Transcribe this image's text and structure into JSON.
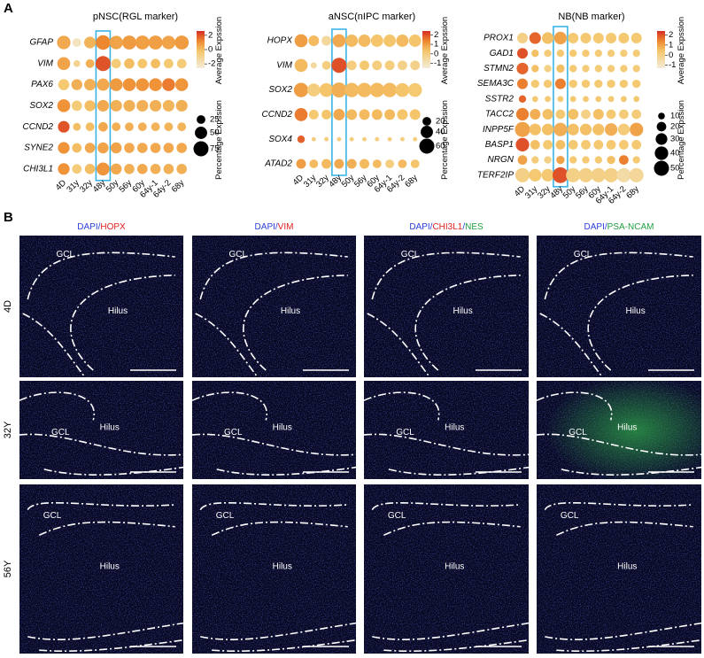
{
  "panel_labels": [
    "A",
    "B"
  ],
  "chart_data": [
    {
      "type": "dotplot",
      "title": "pNSC(RGL marker)",
      "categories": [
        "4D",
        "31y",
        "32y",
        "48y",
        "50y",
        "56y",
        "60y",
        "64y-1",
        "64y-2",
        "68y"
      ],
      "series": [
        {
          "name": "GFAP",
          "values": [
            0.5,
            -2,
            0.2,
            1.2,
            0.6,
            0.8,
            0.7,
            0.7,
            0.6,
            0.8
          ],
          "sizes": [
            60,
            25,
            45,
            70,
            60,
            65,
            65,
            65,
            60,
            65
          ]
        },
        {
          "name": "VIM",
          "values": [
            0.6,
            -1,
            0.3,
            2,
            -0.5,
            0,
            -0.2,
            0,
            -0.3,
            -0.5
          ],
          "sizes": [
            55,
            15,
            25,
            75,
            30,
            35,
            30,
            30,
            30,
            30
          ]
        },
        {
          "name": "PAX6",
          "values": [
            -0.3,
            0.3,
            0.3,
            0.5,
            0.8,
            1,
            0.9,
            1,
            1.4,
            0.9
          ],
          "sizes": [
            40,
            40,
            45,
            50,
            55,
            55,
            55,
            55,
            55,
            55
          ]
        },
        {
          "name": "SOX2",
          "values": [
            1,
            -0.5,
            0,
            0.5,
            0.3,
            0.3,
            0.3,
            0.3,
            0.2,
            0.3
          ],
          "sizes": [
            55,
            35,
            40,
            45,
            45,
            45,
            45,
            45,
            45,
            45
          ]
        },
        {
          "name": "CCND2",
          "values": [
            2,
            0,
            0,
            0.5,
            0.3,
            0.3,
            0.3,
            0.2,
            0.2,
            0.2
          ],
          "sizes": [
            45,
            20,
            25,
            30,
            25,
            25,
            25,
            25,
            25,
            25
          ]
        },
        {
          "name": "SYNE2",
          "values": [
            1,
            0,
            0.5,
            0.6,
            0.6,
            0.5,
            0.5,
            0.5,
            0.5,
            0.5
          ],
          "sizes": [
            45,
            30,
            35,
            40,
            40,
            35,
            35,
            35,
            35,
            35
          ]
        },
        {
          "name": "CHI3L1",
          "values": [
            1,
            -0.5,
            0,
            0.9,
            0.5,
            0.3,
            0.5,
            0.3,
            0.3,
            0.3
          ],
          "sizes": [
            45,
            30,
            35,
            55,
            40,
            35,
            35,
            35,
            35,
            35
          ]
        }
      ],
      "color_label": "Average Expssion",
      "clim": [
        -2.6,
        2.6
      ],
      "cticks": [
        2,
        0,
        -2
      ],
      "size_label": "Percentage Expssion",
      "size_ticks": [
        25,
        50,
        75
      ],
      "highlight_index": 3,
      "highlight_color": "#3cb4e6"
    },
    {
      "type": "dotplot",
      "title": "aNSC(nIPC marker)",
      "categories": [
        "4D",
        "31y",
        "32y",
        "48y",
        "50y",
        "56y",
        "60y",
        "64y-1",
        "64y-2",
        "68y"
      ],
      "series": [
        {
          "name": "HOPX",
          "values": [
            1,
            0.5,
            -0.5,
            0.8,
            0.5,
            0.5,
            0.3,
            0.3,
            0.5,
            0.3
          ],
          "sizes": [
            45,
            30,
            25,
            45,
            40,
            40,
            40,
            40,
            40,
            40
          ]
        },
        {
          "name": "VIM",
          "values": [
            0.5,
            -0.5,
            0,
            2,
            0,
            0.2,
            0,
            0,
            -0.2,
            -0.2
          ],
          "sizes": [
            45,
            10,
            20,
            60,
            25,
            25,
            25,
            25,
            25,
            25
          ]
        },
        {
          "name": "SOX2",
          "values": [
            1,
            0,
            0.3,
            0.7,
            0.5,
            0.5,
            0.5,
            0.5,
            0.3,
            0.2
          ],
          "sizes": [
            55,
            45,
            50,
            60,
            55,
            55,
            55,
            55,
            50,
            50
          ]
        },
        {
          "name": "CCND2",
          "values": [
            1.5,
            0.2,
            0.3,
            0.8,
            0.5,
            0.5,
            0.5,
            0.5,
            0.3,
            0.3
          ],
          "sizes": [
            45,
            25,
            25,
            35,
            30,
            30,
            30,
            30,
            30,
            30
          ]
        },
        {
          "name": "SOX4",
          "values": [
            1.8,
            0,
            0,
            0,
            0,
            0,
            0,
            0,
            0,
            0
          ],
          "sizes": [
            15,
            5,
            5,
            5,
            5,
            5,
            5,
            5,
            5,
            5
          ]
        },
        {
          "name": "ATAD2",
          "values": [
            1,
            0.5,
            0.5,
            0.8,
            0.7,
            0.5,
            0.5,
            0,
            0.5,
            0.3
          ],
          "sizes": [
            25,
            20,
            25,
            25,
            25,
            25,
            20,
            20,
            20,
            20
          ]
        }
      ],
      "color_label": "Average Expssion",
      "clim": [
        -1.5,
        2.4
      ],
      "cticks": [
        2,
        1,
        0,
        -1
      ],
      "size_label": "Percentage Expssion",
      "size_ticks": [
        20,
        40,
        60
      ],
      "highlight_index": 3,
      "highlight_color": "#3cb4e6"
    },
    {
      "type": "dotplot",
      "title": "NB(NB marker)",
      "categories": [
        "4D",
        "31y",
        "32y",
        "48y",
        "50y",
        "56y",
        "60y",
        "64y-1",
        "64y-2",
        "68y"
      ],
      "series": [
        {
          "name": "PROX1",
          "values": [
            0,
            1.8,
            0.5,
            1,
            0.3,
            0.3,
            0.3,
            0.3,
            0.3,
            0.3
          ],
          "sizes": [
            25,
            30,
            30,
            35,
            25,
            25,
            25,
            25,
            25,
            25
          ]
        },
        {
          "name": "GAD1",
          "values": [
            2,
            0.5,
            0.2,
            0.3,
            0.3,
            0.3,
            0.2,
            0.2,
            0.2,
            0.2
          ],
          "sizes": [
            25,
            12,
            12,
            12,
            12,
            12,
            12,
            12,
            12,
            12
          ]
        },
        {
          "name": "STMN2",
          "values": [
            1.8,
            0.5,
            0,
            0.5,
            0.3,
            0.2,
            0.2,
            0.2,
            0.2,
            0.2
          ],
          "sizes": [
            30,
            12,
            12,
            15,
            12,
            12,
            12,
            12,
            12,
            12
          ]
        },
        {
          "name": "SEMA3C",
          "values": [
            1.5,
            0.3,
            0.3,
            1.5,
            0.3,
            0.3,
            0.3,
            0.3,
            0.3,
            0.3
          ],
          "sizes": [
            25,
            15,
            15,
            25,
            15,
            15,
            15,
            15,
            15,
            15
          ]
        },
        {
          "name": "SSTR2",
          "values": [
            1.8,
            0.3,
            0.3,
            0.3,
            0.3,
            0.3,
            0.3,
            0.3,
            0.3,
            0.3
          ],
          "sizes": [
            12,
            8,
            8,
            8,
            8,
            8,
            8,
            8,
            8,
            8
          ]
        },
        {
          "name": "TACC2",
          "values": [
            1.5,
            0.8,
            0.5,
            0.3,
            0.5,
            0,
            0.5,
            0.3,
            0.2,
            0.2
          ],
          "sizes": [
            35,
            25,
            25,
            20,
            25,
            20,
            25,
            20,
            20,
            20
          ]
        },
        {
          "name": "INPP5F",
          "values": [
            1,
            0.5,
            0.5,
            0.8,
            0.5,
            0.5,
            0.5,
            0.8,
            0.2,
            1
          ],
          "sizes": [
            50,
            30,
            30,
            40,
            30,
            30,
            30,
            35,
            30,
            40
          ]
        },
        {
          "name": "BASP1",
          "values": [
            2,
            0.5,
            0.3,
            0.5,
            0.3,
            0.3,
            0.3,
            0.3,
            0.3,
            0.3
          ],
          "sizes": [
            40,
            20,
            20,
            20,
            20,
            20,
            20,
            20,
            20,
            20
          ]
        },
        {
          "name": "NRGN",
          "values": [
            1,
            0.2,
            0,
            1,
            0.3,
            0.3,
            0.3,
            0.5,
            1.5,
            0.3
          ],
          "sizes": [
            20,
            12,
            12,
            15,
            12,
            12,
            12,
            15,
            20,
            12
          ]
        },
        {
          "name": "TERF2IP",
          "values": [
            0,
            0.3,
            0.3,
            2,
            0,
            0,
            0,
            0,
            -0.5,
            -0.3
          ],
          "sizes": [
            45,
            35,
            35,
            55,
            45,
            45,
            45,
            45,
            45,
            45
          ]
        }
      ],
      "color_label": "Average Expssion",
      "clim": [
        -1.3,
        2.4
      ],
      "cticks": [
        2,
        1,
        0,
        -1
      ],
      "size_label": "Percentage Expssion",
      "size_ticks": [
        10,
        20,
        30,
        40,
        50
      ],
      "highlight_index": 3,
      "highlight_color": "#3cb4e6"
    }
  ],
  "panel_b": {
    "columns": [
      [
        {
          "text": "DAPI",
          "color": "#2b3fd6"
        },
        {
          "text": "/",
          "color": "#2b3fd6"
        },
        {
          "text": "HOPX",
          "color": "#e02020"
        }
      ],
      [
        {
          "text": "DAPI",
          "color": "#2b3fd6"
        },
        {
          "text": "/",
          "color": "#2b3fd6"
        },
        {
          "text": "VIM",
          "color": "#e02020"
        }
      ],
      [
        {
          "text": "DAPI",
          "color": "#2b3fd6"
        },
        {
          "text": "/",
          "color": "#2b3fd6"
        },
        {
          "text": "CHI3L1",
          "color": "#e02020"
        },
        {
          "text": "/",
          "color": "#2b3fd6"
        },
        {
          "text": "NES",
          "color": "#22a040"
        }
      ],
      [
        {
          "text": "DAPI",
          "color": "#2b3fd6"
        },
        {
          "text": "/",
          "color": "#2b3fd6"
        },
        {
          "text": "PSA-NCAM",
          "color": "#22a040"
        }
      ]
    ],
    "rows": [
      "4D",
      "32Y",
      "56Y"
    ],
    "region_labels": [
      "GCL",
      "Hilus"
    ]
  }
}
